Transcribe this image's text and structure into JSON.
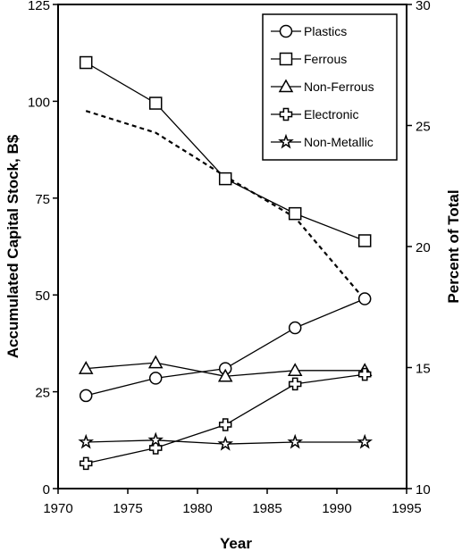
{
  "chart_data": {
    "type": "line",
    "xlabel": "Year",
    "ylabel": "Accumulated Capital Stock, B$",
    "y2label": "Percent of Total",
    "xlim": [
      1970,
      1995
    ],
    "ylim": [
      0,
      125
    ],
    "y2lim": [
      10,
      30
    ],
    "xticks": [
      "1970",
      "1975",
      "1980",
      "1985",
      "1990",
      "1995"
    ],
    "yticks": [
      "0",
      "25",
      "50",
      "75",
      "100",
      "125"
    ],
    "y2ticks": [
      "10",
      "15",
      "20",
      "25",
      "30"
    ],
    "legend_position": "top-right",
    "series": [
      {
        "name": "Plastics",
        "marker": "circle",
        "x": [
          1972,
          1977,
          1982,
          1987,
          1992
        ],
        "values": [
          24,
          28.5,
          31,
          41.5,
          49
        ]
      },
      {
        "name": "Ferrous",
        "marker": "square",
        "x": [
          1972,
          1977,
          1982,
          1987,
          1992
        ],
        "values": [
          110,
          99.5,
          80,
          71,
          64
        ]
      },
      {
        "name": "Non-Ferrous",
        "marker": "triangle",
        "x": [
          1972,
          1977,
          1982,
          1987,
          1992
        ],
        "values": [
          31,
          32.5,
          29,
          30.5,
          30.5
        ]
      },
      {
        "name": "Electronic",
        "marker": "cross",
        "x": [
          1972,
          1977,
          1982,
          1987,
          1992
        ],
        "values": [
          6.5,
          10.5,
          16.5,
          27,
          29.5
        ]
      },
      {
        "name": "Non-Metallic",
        "marker": "star",
        "x": [
          1972,
          1977,
          1982,
          1987,
          1992
        ],
        "values": [
          12,
          12.5,
          11.5,
          12,
          12
        ]
      }
    ],
    "dashed_line": {
      "axis": "right",
      "x": [
        1972,
        1977,
        1982,
        1987,
        1992
      ],
      "values": [
        25.6,
        24.7,
        22.9,
        21.2,
        17.8
      ]
    }
  }
}
